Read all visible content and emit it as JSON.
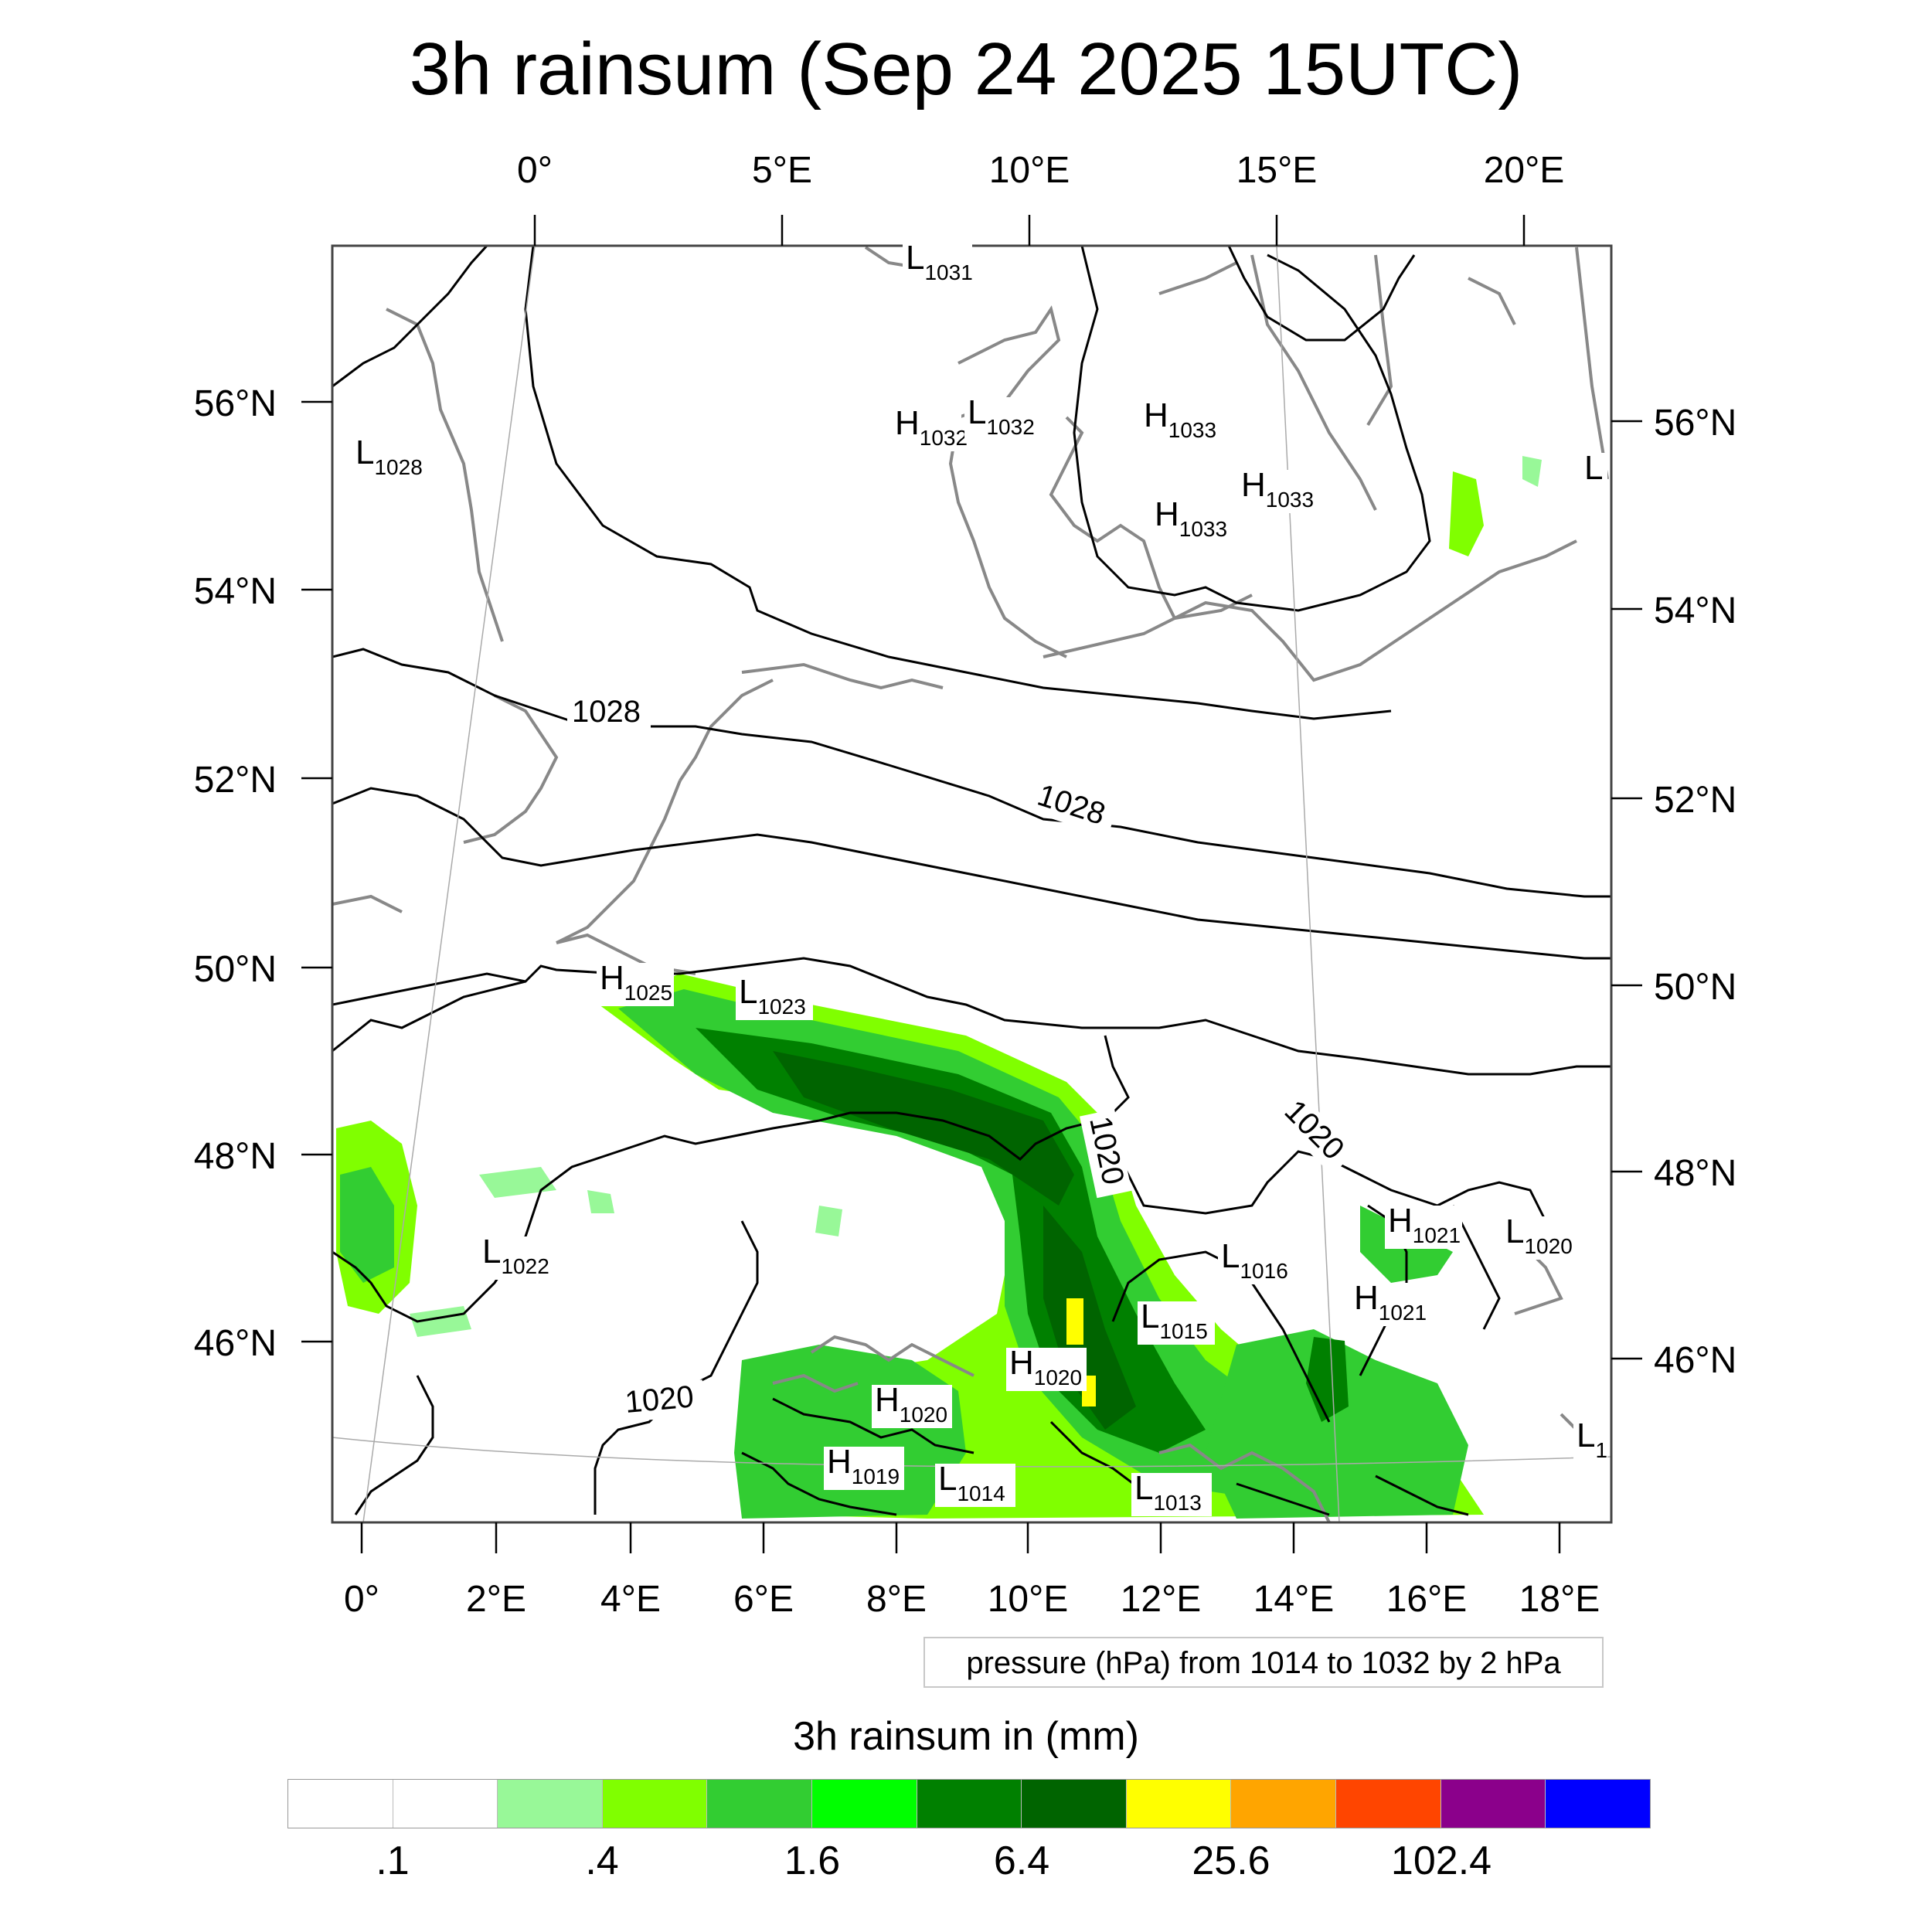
{
  "title": "3h rainsum (Sep 24 2025 15UTC)",
  "top_lon_ticks": [
    "0°",
    "5°E",
    "10°E",
    "15°E",
    "20°E"
  ],
  "bottom_lon_ticks": [
    "0°",
    "2°E",
    "4°E",
    "6°E",
    "8°E",
    "10°E",
    "12°E",
    "14°E",
    "16°E",
    "18°E"
  ],
  "left_lat_ticks": [
    "56°N",
    "54°N",
    "52°N",
    "50°N",
    "48°N",
    "46°N"
  ],
  "right_lat_ticks": [
    "56°N",
    "54°N",
    "52°N",
    "50°N",
    "48°N",
    "46°N"
  ],
  "pressure_centers": [
    {
      "type": "L",
      "value": "1031"
    },
    {
      "type": "H",
      "value": "1032"
    },
    {
      "type": "L",
      "value": "1032"
    },
    {
      "type": "H",
      "value": "1033"
    },
    {
      "type": "H",
      "value": "1033"
    },
    {
      "type": "H",
      "value": "1033"
    },
    {
      "type": "L",
      "value": "1028"
    },
    {
      "type": "L",
      "value": ""
    },
    {
      "type": "H",
      "value": "1025"
    },
    {
      "type": "L",
      "value": "1023"
    },
    {
      "type": "L",
      "value": "1022"
    },
    {
      "type": "H",
      "value": "1021"
    },
    {
      "type": "L",
      "value": "1020"
    },
    {
      "type": "L",
      "value": "1016"
    },
    {
      "type": "H",
      "value": "1021"
    },
    {
      "type": "L",
      "value": "1015"
    },
    {
      "type": "H",
      "value": "1020"
    },
    {
      "type": "H",
      "value": "1020"
    },
    {
      "type": "H",
      "value": "1019"
    },
    {
      "type": "L",
      "value": "1014"
    },
    {
      "type": "L",
      "value": "1013"
    },
    {
      "type": "L",
      "value": "1"
    }
  ],
  "contour_labels": [
    "1028",
    "1028",
    "1020",
    "1020",
    "1020"
  ],
  "info_box": "pressure (hPa) from 1014 to 1032 by 2 hPa",
  "colorbar": {
    "title": "3h rainsum in (mm)",
    "colors": [
      "#ffffff",
      "#ffffff",
      "#98f898",
      "#80ff00",
      "#32cd32",
      "#00ff00",
      "#008000",
      "#006400",
      "#ffff00",
      "#ffa500",
      "#ff4500",
      "#8b008b",
      "#0000ff"
    ],
    "labels": [
      ".1",
      ".4",
      "1.6",
      "6.4",
      "25.6",
      "102.4"
    ]
  }
}
